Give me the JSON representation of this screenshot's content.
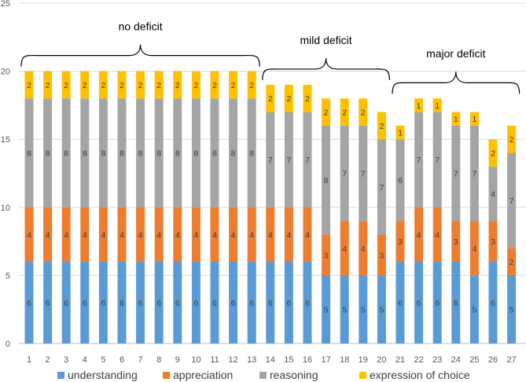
{
  "chart_data": {
    "type": "bar",
    "stacked": true,
    "title": "",
    "xlabel": "",
    "ylabel": "",
    "ylim": [
      0,
      25
    ],
    "yticks": [
      "0",
      "5",
      "10",
      "15",
      "20",
      "25"
    ],
    "grid": true,
    "legend_position": "bottom",
    "categories": [
      "1",
      "2",
      "3",
      "4",
      "5",
      "6",
      "7",
      "8",
      "9",
      "10",
      "11",
      "12",
      "13",
      "14",
      "15",
      "16",
      "17",
      "18",
      "19",
      "20",
      "21",
      "22",
      "23",
      "24",
      "25",
      "26",
      "27"
    ],
    "series": [
      {
        "name": "understanding",
        "color": "#5B9BD5",
        "values": [
          6,
          6,
          6,
          6,
          6,
          6,
          6,
          6,
          6,
          6,
          6,
          6,
          6,
          6,
          6,
          6,
          5,
          5,
          5,
          5,
          6,
          6,
          6,
          6,
          5,
          6,
          5
        ]
      },
      {
        "name": "appreciation",
        "color": "#ED7D31",
        "values": [
          4,
          4,
          4,
          4,
          4,
          4,
          4,
          4,
          4,
          4,
          4,
          4,
          4,
          4,
          4,
          4,
          3,
          4,
          4,
          3,
          3,
          4,
          4,
          3,
          4,
          3,
          2
        ]
      },
      {
        "name": "reasoning",
        "color": "#A5A5A5",
        "values": [
          8,
          8,
          8,
          8,
          8,
          8,
          8,
          8,
          8,
          8,
          8,
          8,
          8,
          7,
          7,
          7,
          8,
          7,
          7,
          7,
          6,
          7,
          7,
          7,
          7,
          4,
          7
        ]
      },
      {
        "name": "expression of choice",
        "color": "#FFC000",
        "values": [
          2,
          2,
          2,
          2,
          2,
          2,
          2,
          2,
          2,
          2,
          2,
          2,
          2,
          2,
          2,
          2,
          2,
          2,
          2,
          2,
          1,
          1,
          1,
          1,
          1,
          2,
          2
        ]
      }
    ],
    "annotations": [
      {
        "text": "no deficit",
        "from_category": "1",
        "to_category": "13"
      },
      {
        "text": "mild deficit",
        "from_category": "14",
        "to_category": "20"
      },
      {
        "text": "major deficit",
        "from_category": "21",
        "to_category": "27"
      }
    ]
  }
}
